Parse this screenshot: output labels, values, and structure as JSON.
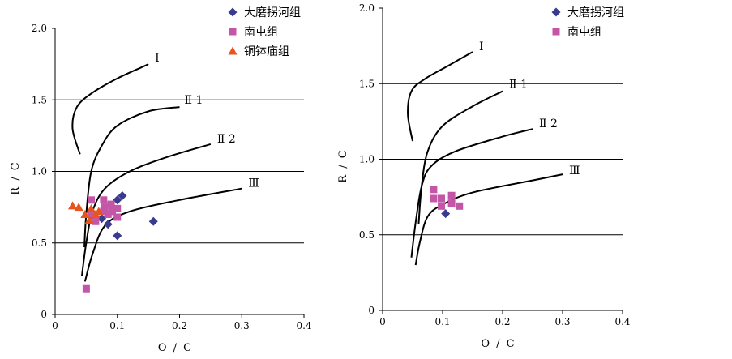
{
  "chart_data": [
    {
      "type": "scatter",
      "xlabel": "O / C",
      "ylabel": "R / C",
      "xlim": [
        0,
        0.4
      ],
      "ylim": [
        0,
        2.0
      ],
      "x_ticks": [
        "0",
        "0.1",
        "0.2",
        "0.3",
        "0.4"
      ],
      "y_ticks": [
        "0",
        "0.5",
        "1.0",
        "1.5",
        "2.0"
      ],
      "grid": "horizontal at 0.5, 1.0, 1.5",
      "legend_position": "top-right",
      "series": [
        {
          "name": "大磨拐河组",
          "marker": "diamond",
          "color": "#3a3a8f",
          "points": [
            [
              0.075,
              0.67
            ],
            [
              0.085,
              0.63
            ],
            [
              0.1,
              0.55
            ],
            [
              0.1,
              0.8
            ],
            [
              0.108,
              0.83
            ],
            [
              0.158,
              0.65
            ]
          ]
        },
        {
          "name": "南屯组",
          "marker": "square",
          "color": "#c456a8",
          "points": [
            [
              0.05,
              0.18
            ],
            [
              0.058,
              0.8
            ],
            [
              0.058,
              0.7
            ],
            [
              0.078,
              0.8
            ],
            [
              0.078,
              0.72
            ],
            [
              0.08,
              0.75
            ],
            [
              0.085,
              0.7
            ],
            [
              0.09,
              0.77
            ],
            [
              0.092,
              0.72
            ],
            [
              0.1,
              0.74
            ],
            [
              0.1,
              0.68
            ],
            [
              0.065,
              0.65
            ]
          ]
        },
        {
          "name": "铜钵庙组",
          "marker": "triangle",
          "color": "#e8541e",
          "points": [
            [
              0.028,
              0.76
            ],
            [
              0.038,
              0.75
            ],
            [
              0.048,
              0.7
            ],
            [
              0.055,
              0.66
            ],
            [
              0.058,
              0.74
            ],
            [
              0.065,
              0.7
            ],
            [
              0.07,
              0.72
            ]
          ]
        }
      ],
      "curves": [
        {
          "label": "Ⅰ",
          "points": [
            [
              0.04,
              1.12
            ],
            [
              0.028,
              1.3
            ],
            [
              0.035,
              1.45
            ],
            [
              0.06,
              1.55
            ],
            [
              0.1,
              1.65
            ],
            [
              0.14,
              1.73
            ],
            [
              0.15,
              1.75
            ]
          ]
        },
        {
          "label": "Ⅱ 1",
          "points": [
            [
              0.047,
              0.47
            ],
            [
              0.05,
              0.7
            ],
            [
              0.058,
              1.0
            ],
            [
              0.075,
              1.18
            ],
            [
              0.1,
              1.32
            ],
            [
              0.15,
              1.42
            ],
            [
              0.2,
              1.45
            ]
          ]
        },
        {
          "label": "Ⅱ 2",
          "points": [
            [
              0.043,
              0.27
            ],
            [
              0.05,
              0.5
            ],
            [
              0.06,
              0.72
            ],
            [
              0.08,
              0.88
            ],
            [
              0.12,
              1.0
            ],
            [
              0.18,
              1.1
            ],
            [
              0.25,
              1.19
            ]
          ]
        },
        {
          "label": "Ⅲ",
          "points": [
            [
              0.048,
              0.23
            ],
            [
              0.06,
              0.42
            ],
            [
              0.08,
              0.62
            ],
            [
              0.12,
              0.72
            ],
            [
              0.2,
              0.8
            ],
            [
              0.3,
              0.88
            ]
          ]
        }
      ]
    },
    {
      "type": "scatter",
      "xlabel": "O / C",
      "ylabel": "R / C",
      "xlim": [
        0,
        0.4
      ],
      "ylim": [
        0,
        2.0
      ],
      "x_ticks": [
        "0",
        "0.1",
        "0.2",
        "0.3",
        "0.4"
      ],
      "y_ticks": [
        "0",
        "0.5",
        "1.0",
        "1.5",
        "2.0"
      ],
      "grid": "horizontal at 0.5, 1.0, 1.5",
      "legend_position": "top-right",
      "series": [
        {
          "name": "大磨拐河组",
          "marker": "diamond",
          "color": "#3a3a8f",
          "points": [
            [
              0.105,
              0.64
            ]
          ]
        },
        {
          "name": "南屯组",
          "marker": "square",
          "color": "#c456a8",
          "points": [
            [
              0.085,
              0.8
            ],
            [
              0.085,
              0.74
            ],
            [
              0.098,
              0.74
            ],
            [
              0.098,
              0.69
            ],
            [
              0.115,
              0.76
            ],
            [
              0.115,
              0.71
            ],
            [
              0.128,
              0.69
            ]
          ]
        }
      ],
      "curves": [
        {
          "label": "Ⅰ",
          "points": [
            [
              0.05,
              1.12
            ],
            [
              0.042,
              1.3
            ],
            [
              0.048,
              1.45
            ],
            [
              0.07,
              1.53
            ],
            [
              0.11,
              1.62
            ],
            [
              0.15,
              1.71
            ]
          ]
        },
        {
          "label": "Ⅱ 1",
          "points": [
            [
              0.06,
              0.57
            ],
            [
              0.065,
              0.82
            ],
            [
              0.075,
              1.05
            ],
            [
              0.1,
              1.22
            ],
            [
              0.15,
              1.35
            ],
            [
              0.2,
              1.45
            ]
          ]
        },
        {
          "label": "Ⅱ 2",
          "points": [
            [
              0.048,
              0.35
            ],
            [
              0.055,
              0.58
            ],
            [
              0.065,
              0.82
            ],
            [
              0.08,
              0.95
            ],
            [
              0.12,
              1.05
            ],
            [
              0.2,
              1.15
            ],
            [
              0.25,
              1.2
            ]
          ]
        },
        {
          "label": "Ⅲ",
          "points": [
            [
              0.055,
              0.3
            ],
            [
              0.062,
              0.45
            ],
            [
              0.075,
              0.62
            ],
            [
              0.1,
              0.7
            ],
            [
              0.15,
              0.78
            ],
            [
              0.25,
              0.86
            ],
            [
              0.3,
              0.9
            ]
          ]
        }
      ]
    }
  ]
}
